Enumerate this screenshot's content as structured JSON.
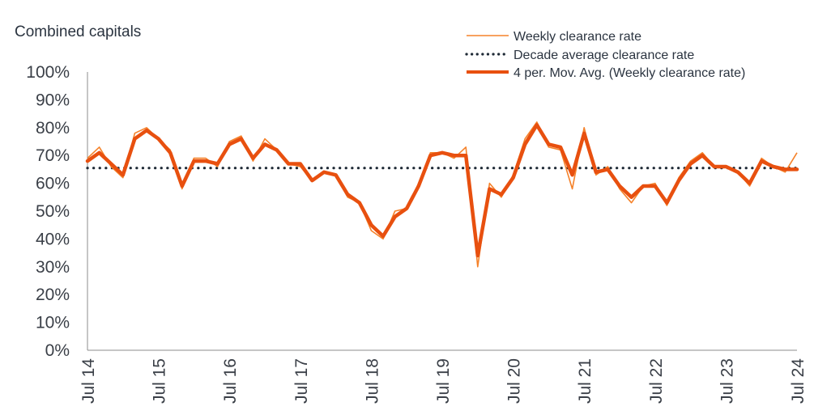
{
  "chart_data": {
    "type": "line",
    "title": "Combined capitals",
    "xlabel": "",
    "ylabel": "",
    "ylim": [
      0,
      100
    ],
    "y_ticks": [
      "0%",
      "10%",
      "20%",
      "30%",
      "40%",
      "50%",
      "60%",
      "70%",
      "80%",
      "90%",
      "100%"
    ],
    "x_ticks": [
      "Jul 14",
      "Jul 15",
      "Jul 16",
      "Jul 17",
      "Jul 18",
      "Jul 19",
      "Jul 20",
      "Jul 21",
      "Jul 22",
      "Jul 23",
      "Jul 24"
    ],
    "x_range": [
      "2014-07",
      "2024-07"
    ],
    "grid": false,
    "legend_position": "top-right",
    "colors": {
      "weekly": "#f5822a",
      "moving_avg": "#e8500f",
      "decade_avg": "#1f2a36"
    },
    "series": [
      {
        "name": "Weekly clearance rate",
        "style": "thin-line",
        "x": [
          "2014-07",
          "2014-09",
          "2014-11",
          "2015-01",
          "2015-03",
          "2015-05",
          "2015-07",
          "2015-09",
          "2015-11",
          "2016-01",
          "2016-03",
          "2016-05",
          "2016-07",
          "2016-09",
          "2016-11",
          "2017-01",
          "2017-03",
          "2017-05",
          "2017-07",
          "2017-09",
          "2017-11",
          "2018-01",
          "2018-03",
          "2018-05",
          "2018-07",
          "2018-09",
          "2018-11",
          "2019-01",
          "2019-03",
          "2019-05",
          "2019-07",
          "2019-09",
          "2019-11",
          "2020-01",
          "2020-03",
          "2020-05",
          "2020-07",
          "2020-09",
          "2020-11",
          "2021-01",
          "2021-03",
          "2021-05",
          "2021-07",
          "2021-09",
          "2021-11",
          "2022-01",
          "2022-03",
          "2022-05",
          "2022-07",
          "2022-09",
          "2022-11",
          "2023-01",
          "2023-03",
          "2023-05",
          "2023-07",
          "2023-09",
          "2023-11",
          "2024-01",
          "2024-03",
          "2024-05",
          "2024-07"
        ],
        "values": [
          69,
          73,
          66,
          62,
          78,
          80,
          76,
          72,
          58,
          69,
          69,
          66,
          75,
          77,
          68,
          76,
          72,
          67,
          66,
          61,
          64,
          63,
          55,
          53,
          43,
          40,
          50,
          51,
          60,
          71,
          71,
          69,
          73,
          30,
          60,
          55,
          63,
          76,
          82,
          73,
          72,
          58,
          80,
          63,
          66,
          58,
          53,
          59,
          60,
          52,
          62,
          68,
          71,
          66,
          66,
          64,
          59,
          69,
          66,
          64,
          71
        ]
      },
      {
        "name": "Decade average clearance rate",
        "style": "dotted",
        "x": [
          "2014-07",
          "2024-07"
        ],
        "values": [
          65.5,
          65.5
        ]
      },
      {
        "name": "4 per. Mov. Avg. (Weekly clearance rate)",
        "style": "thick-line",
        "x": [
          "2014-07",
          "2014-09",
          "2014-11",
          "2015-01",
          "2015-03",
          "2015-05",
          "2015-07",
          "2015-09",
          "2015-11",
          "2016-01",
          "2016-03",
          "2016-05",
          "2016-07",
          "2016-09",
          "2016-11",
          "2017-01",
          "2017-03",
          "2017-05",
          "2017-07",
          "2017-09",
          "2017-11",
          "2018-01",
          "2018-03",
          "2018-05",
          "2018-07",
          "2018-09",
          "2018-11",
          "2019-01",
          "2019-03",
          "2019-05",
          "2019-07",
          "2019-09",
          "2019-11",
          "2020-01",
          "2020-03",
          "2020-05",
          "2020-07",
          "2020-09",
          "2020-11",
          "2021-01",
          "2021-03",
          "2021-05",
          "2021-07",
          "2021-09",
          "2021-11",
          "2022-01",
          "2022-03",
          "2022-05",
          "2022-07",
          "2022-09",
          "2022-11",
          "2023-01",
          "2023-03",
          "2023-05",
          "2023-07",
          "2023-09",
          "2023-11",
          "2024-01",
          "2024-03",
          "2024-05",
          "2024-07"
        ],
        "values": [
          68,
          71,
          67,
          63,
          76,
          79,
          76,
          71,
          59,
          68,
          68,
          67,
          74,
          76,
          69,
          74,
          72,
          67,
          67,
          61,
          64,
          63,
          56,
          53,
          45,
          41,
          48,
          51,
          59,
          70,
          71,
          70,
          70,
          34,
          58,
          56,
          62,
          74,
          81,
          74,
          73,
          63,
          78,
          64,
          65,
          59,
          55,
          59,
          59,
          53,
          61,
          67,
          70,
          66,
          66,
          64,
          60,
          68,
          66,
          65,
          65
        ]
      }
    ]
  }
}
